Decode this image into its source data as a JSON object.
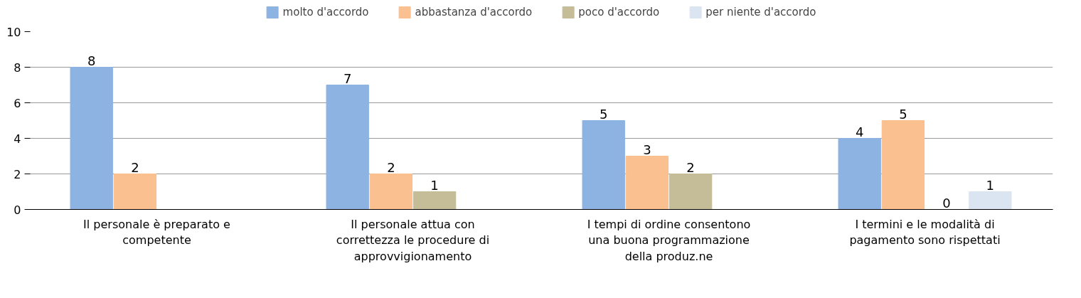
{
  "chart_data": {
    "type": "bar",
    "categories": [
      "Il personale è preparato e\ncompetente",
      "Il personale attua con\ncorrettezza le procedure di\napprovvigionamento",
      "I tempi di ordine consentono\nuna buona programmazione\ndella produz.ne",
      "I termini e le modalità di\npagamento sono rispettati"
    ],
    "series": [
      {
        "name": "molto d'accordo",
        "color": "#8db3e2",
        "values": [
          8,
          7,
          5,
          4
        ]
      },
      {
        "name": "abbastanza d'accordo",
        "color": "#fac090",
        "values": [
          2,
          2,
          3,
          5
        ]
      },
      {
        "name": "poco d'accordo",
        "color": "#c4bd97",
        "values": [
          null,
          1,
          2,
          0
        ]
      },
      {
        "name": "per niente d'accordo",
        "color": "#dbe5f1",
        "values": [
          null,
          null,
          null,
          1
        ]
      }
    ],
    "ylim": [
      0,
      10
    ],
    "yticks": [
      0,
      2,
      4,
      6,
      8,
      10
    ],
    "grid": "y",
    "legend": "top",
    "data_labels": true
  }
}
